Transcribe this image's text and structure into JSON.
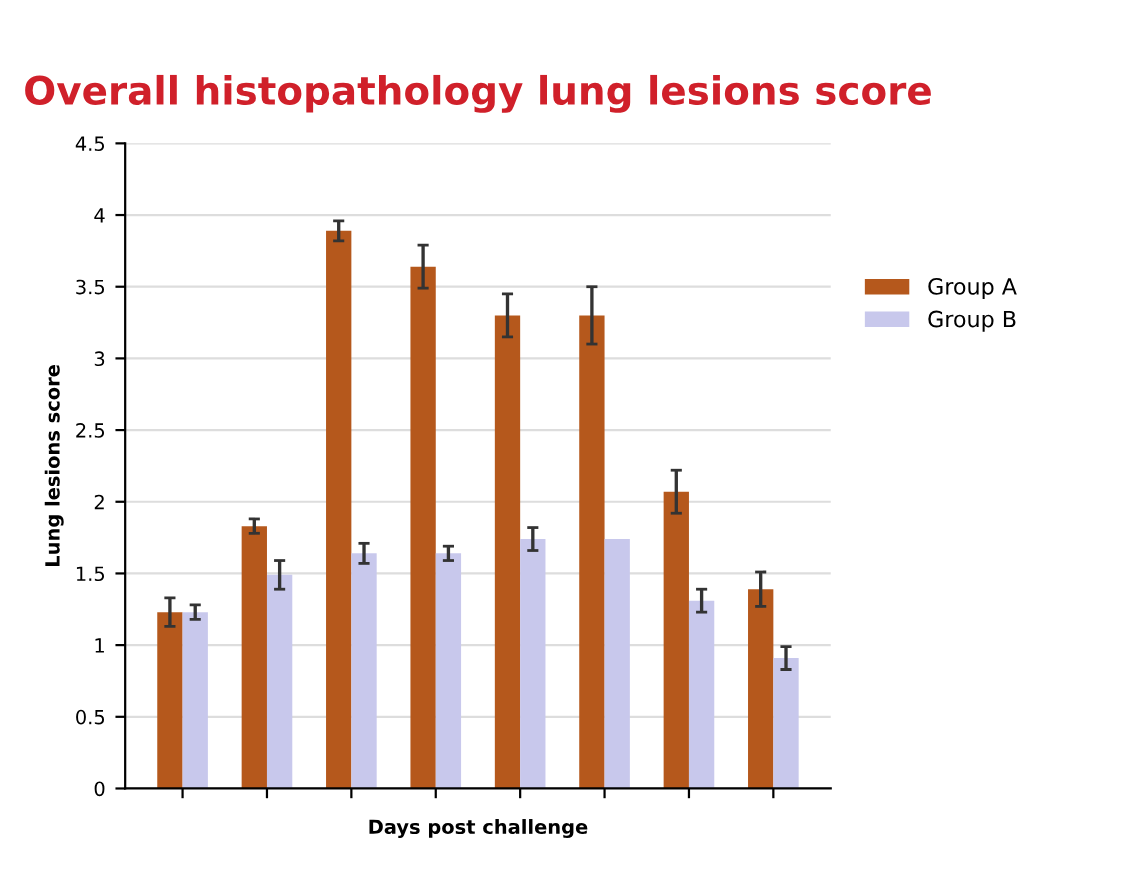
{
  "chart_data": {
    "type": "bar",
    "title": "Overall histopathology lung lesions score",
    "xlabel": "Days post challenge",
    "ylabel": "Lung lesions score",
    "categories": [
      null,
      null,
      null,
      null,
      null,
      null,
      null,
      null
    ],
    "series": [
      {
        "name": "Group A",
        "color": "#b5581c",
        "values": [
          1.23,
          1.83,
          3.89,
          3.64,
          3.3,
          3.3,
          2.07,
          1.39
        ],
        "errors": [
          0.1,
          0.05,
          0.07,
          0.15,
          0.15,
          0.2,
          0.15,
          0.12
        ]
      },
      {
        "name": "Group B",
        "color": "#c8c8ec",
        "values": [
          1.23,
          1.49,
          1.64,
          1.64,
          1.74,
          1.74,
          1.31,
          0.91
        ],
        "errors": [
          0.05,
          0.1,
          0.07,
          0.05,
          0.08,
          null,
          0.08,
          0.08
        ]
      }
    ],
    "ylim": [
      0,
      4.5
    ],
    "yticks": [
      0,
      0.5,
      1,
      1.5,
      2,
      2.5,
      3,
      3.5,
      4,
      4.5
    ],
    "grid": "y",
    "legend": "right"
  }
}
